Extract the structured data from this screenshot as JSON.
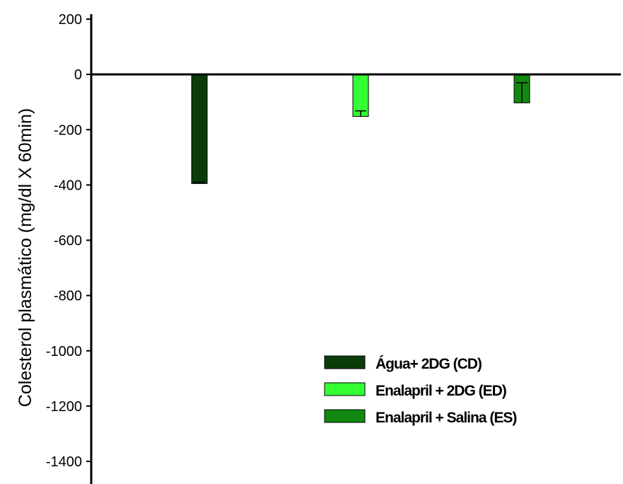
{
  "chart_data": {
    "type": "bar",
    "ylabel": "Colesterol plasmático (mg/dl X 60min)",
    "ylim": [
      -1500,
      200
    ],
    "yticks": [
      200,
      0,
      -200,
      -400,
      -600,
      -800,
      -1000,
      -1200,
      -1400
    ],
    "series": [
      {
        "name": "Água+ 2DG (CD)",
        "value": -395,
        "error": 5,
        "color": "#0a3d0a"
      },
      {
        "name": "Enalapril + 2DG (ED)",
        "value": -152,
        "error": 20,
        "color": "#33ff33"
      },
      {
        "name": "Enalapril + Salina (ES)",
        "value": -103,
        "error": 73,
        "color": "#118811"
      }
    ],
    "legend_position": "bottom-right",
    "grid": false
  }
}
